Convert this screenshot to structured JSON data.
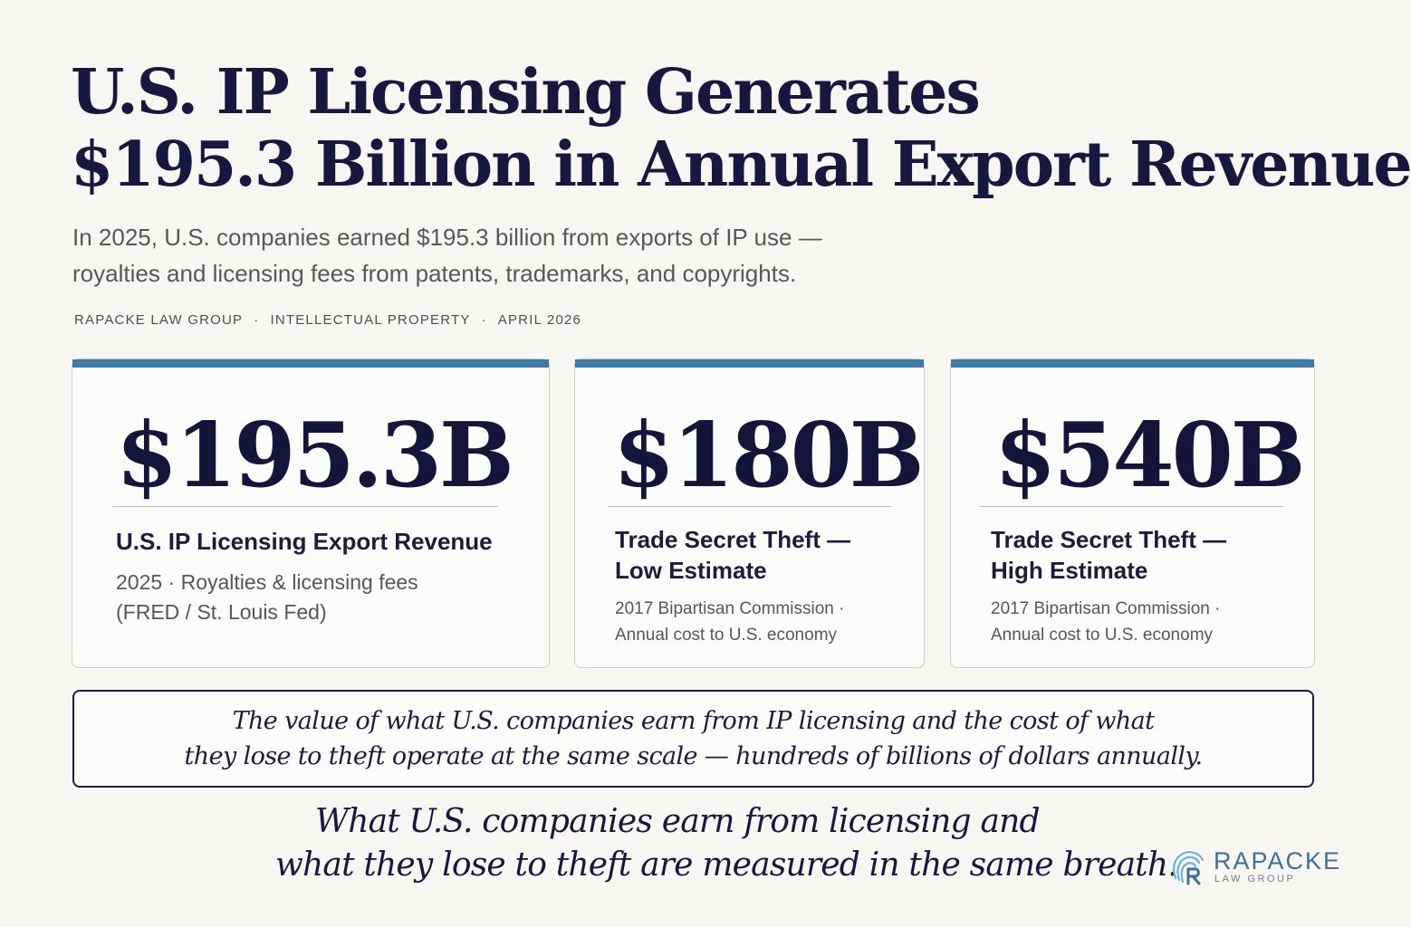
{
  "header": {
    "title_lines": [
      "U.S. IP Licensing Generates",
      "$195.3 Billion in Annual Export Revenue"
    ],
    "subtitle_lines": [
      "In 2025, U.S. companies earned $195.3 billion from exports of IP use —",
      "royalties and licensing fees from patents, trademarks, and copyrights."
    ],
    "byline": {
      "org": "RAPACKE LAW GROUP",
      "category": "INTELLECTUAL PROPERTY",
      "date": "APRIL 2026",
      "separator": "·"
    }
  },
  "cards": [
    {
      "value": "$195.3B",
      "label_lines": [
        "U.S. IP Licensing Export Revenue"
      ],
      "note_lines": [
        "2025 · Royalties & licensing fees",
        "(FRED / St. Louis Fed)"
      ]
    },
    {
      "value": "$180B",
      "label_lines": [
        "Trade Secret Theft —",
        "Low Estimate"
      ],
      "note_lines": [
        "2017 Bipartisan Commission ·",
        "Annual cost to U.S. economy"
      ]
    },
    {
      "value": "$540B",
      "label_lines": [
        "Trade Secret Theft —",
        "High Estimate"
      ],
      "note_lines": [
        "2017 Bipartisan Commission ·",
        "Annual cost to U.S. economy"
      ]
    }
  ],
  "callout": {
    "lines": [
      "The value of what U.S. companies earn from IP licensing and the cost of what",
      "they lose to theft operate at the same scale — hundreds of billions of dollars annually."
    ]
  },
  "closing": {
    "lines": [
      "What U.S. companies earn from licensing and",
      "what they lose to theft are measured in the same breath."
    ]
  },
  "logo": {
    "name": "RAPACKE",
    "tagline": "LAW GROUP",
    "icon": "fingerprint-r-icon"
  },
  "colors": {
    "accent_bar": "#3d7aa8",
    "title": "#17173f",
    "background": "#f7f6f2"
  }
}
